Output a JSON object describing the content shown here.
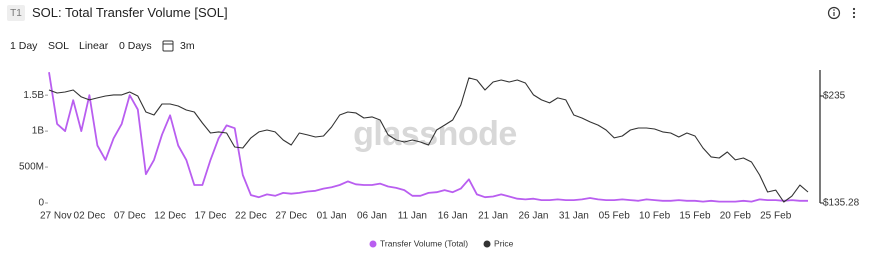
{
  "badge": "T1",
  "toolbar": {
    "resolution": "1 Day",
    "asset": "SOL",
    "scale": "Linear",
    "moving_average": "0 Days",
    "range": "3m"
  },
  "chart_data": {
    "type": "line",
    "title": "SOL: Total Transfer Volume [SOL]",
    "watermark": "glassnode",
    "categories": [
      "27 Nov",
      null,
      null,
      null,
      null,
      "02 Dec",
      null,
      null,
      null,
      null,
      "07 Dec",
      null,
      null,
      null,
      null,
      "12 Dec",
      null,
      null,
      null,
      null,
      "17 Dec",
      null,
      null,
      null,
      null,
      "22 Dec",
      null,
      null,
      null,
      null,
      "27 Dec",
      null,
      null,
      null,
      null,
      "01 Jan",
      null,
      null,
      null,
      null,
      "06 Jan",
      null,
      null,
      null,
      null,
      "11 Jan",
      null,
      null,
      null,
      null,
      "16 Jan",
      null,
      null,
      null,
      null,
      "21 Jan",
      null,
      null,
      null,
      null,
      "26 Jan",
      null,
      null,
      null,
      null,
      "31 Jan",
      null,
      null,
      null,
      null,
      "05 Feb",
      null,
      null,
      null,
      null,
      "10 Feb",
      null,
      null,
      null,
      null,
      "15 Feb",
      null,
      null,
      null,
      null,
      "20 Feb",
      null,
      null,
      null,
      null,
      "25 Feb",
      null,
      null,
      null,
      null
    ],
    "series": [
      {
        "name": "Transfer Volume (Total)",
        "color": "#b95ef0",
        "axis": "y",
        "values": [
          1820000000,
          1100000000,
          1000000000,
          1430000000,
          1000000000,
          1500000000,
          800000000,
          600000000,
          900000000,
          1100000000,
          1500000000,
          1300000000,
          400000000,
          600000000,
          950000000,
          1220000000,
          800000000,
          600000000,
          250000000,
          250000000,
          600000000,
          900000000,
          1080000000,
          1040000000,
          390000000,
          110000000,
          80000000,
          120000000,
          100000000,
          140000000,
          130000000,
          140000000,
          160000000,
          170000000,
          200000000,
          220000000,
          250000000,
          300000000,
          260000000,
          250000000,
          250000000,
          270000000,
          230000000,
          210000000,
          180000000,
          100000000,
          100000000,
          140000000,
          150000000,
          180000000,
          150000000,
          200000000,
          330000000,
          120000000,
          80000000,
          90000000,
          120000000,
          90000000,
          60000000,
          50000000,
          60000000,
          40000000,
          40000000,
          50000000,
          40000000,
          40000000,
          50000000,
          70000000,
          50000000,
          40000000,
          40000000,
          50000000,
          40000000,
          30000000,
          50000000,
          40000000,
          30000000,
          30000000,
          40000000,
          30000000,
          30000000,
          20000000,
          30000000,
          20000000,
          20000000,
          20000000,
          30000000,
          20000000,
          50000000,
          40000000,
          40000000,
          30000000,
          40000000,
          30000000,
          30000000
        ]
      },
      {
        "name": "Price",
        "color": "#333333",
        "axis": "y2",
        "values": [
          240.6,
          237.8,
          238.7,
          240.6,
          234.1,
          231.3,
          233.2,
          235.0,
          236.0,
          236.0,
          238.7,
          235.0,
          220.1,
          217.3,
          227.5,
          227.5,
          225.7,
          221.9,
          220.1,
          209.8,
          200.5,
          201.5,
          200.5,
          187.5,
          186.5,
          195.9,
          201.5,
          203.3,
          201.5,
          194.0,
          189.3,
          200.5,
          198.7,
          196.8,
          197.7,
          206.1,
          217.3,
          220.1,
          219.2,
          214.5,
          215.5,
          212.6,
          198.7,
          194.0,
          192.1,
          194.0,
          192.1,
          189.3,
          203.3,
          207.9,
          212.6,
          226.6,
          251.8,
          249.9,
          240.6,
          248.0,
          249.9,
          248.0,
          249.9,
          247.1,
          236.0,
          231.3,
          228.5,
          233.2,
          231.3,
          217.3,
          214.5,
          210.8,
          207.9,
          203.3,
          195.9,
          197.7,
          203.3,
          205.2,
          205.2,
          204.2,
          201.5,
          200.5,
          196.8,
          200.5,
          197.7,
          186.5,
          178.2,
          177.2,
          182.8,
          175.4,
          177.2,
          173.5,
          161.4,
          145.5,
          147.3,
          136.2,
          141.7,
          152.0,
          145.5
        ]
      }
    ],
    "ylim": [
      0,
      1850000000
    ],
    "yticks": [
      0,
      {
        "value": 500000000,
        "label": "500M"
      },
      {
        "value": 1000000000,
        "label": "1B"
      },
      {
        "value": 1500000000,
        "label": "1.5B"
      }
    ],
    "y2lim": [
      135.28,
      259.2
    ],
    "y2ticks": [
      {
        "value": 235,
        "label": "$235"
      },
      {
        "value": 135.28,
        "label": "$135.28"
      }
    ],
    "grid": false,
    "legend": "bottom"
  }
}
